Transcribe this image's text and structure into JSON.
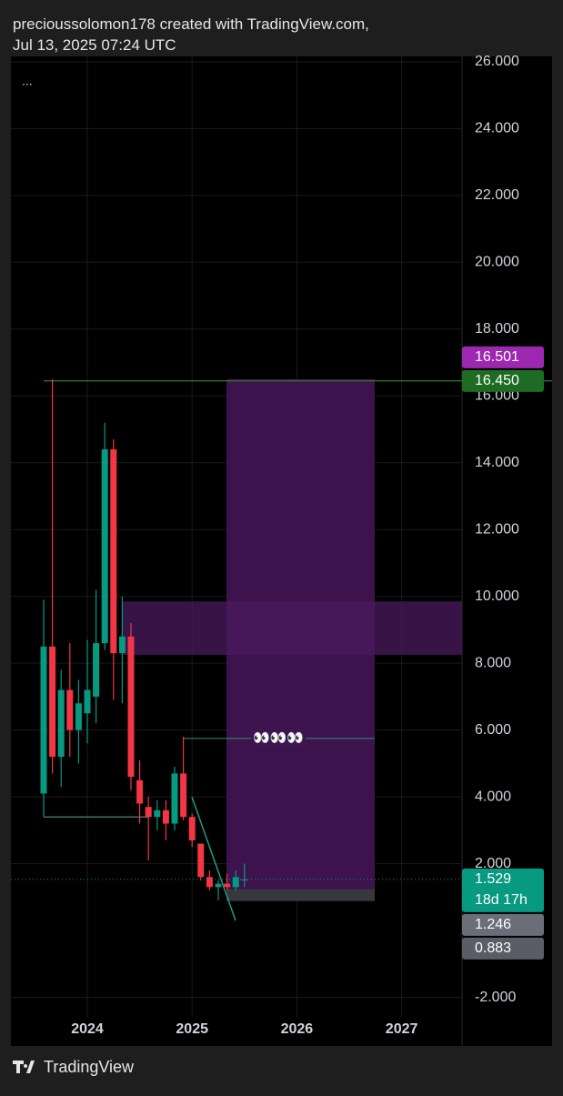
{
  "header": {
    "line1": "precioussolomon178 created with TradingView.com,",
    "line2": "Jul 13, 2025 07:24 UTC",
    "menu": "..."
  },
  "footer": {
    "brand": "TradingView"
  },
  "chart_data": {
    "type": "candlestick",
    "categories": [
      null,
      null,
      null,
      null,
      null,
      "2024",
      null,
      null,
      null,
      null,
      null,
      null,
      null,
      null,
      null,
      null,
      null,
      "2025",
      null,
      null,
      null,
      null,
      null,
      null,
      null,
      null,
      null,
      null,
      null,
      "2026",
      null,
      null,
      null,
      null,
      null,
      null,
      null,
      null,
      null,
      null,
      null,
      "2027",
      null,
      null,
      null,
      null,
      null
    ],
    "open": [
      4.1,
      8.5,
      5.2,
      7.2,
      6.0,
      6.5,
      7.0,
      8.6,
      14.4,
      8.3,
      8.8,
      4.5,
      3.7,
      3.4,
      3.6,
      3.2,
      4.7,
      3.4,
      2.6,
      1.6,
      1.3,
      1.4,
      1.3,
      1.5,
      null,
      null,
      null,
      null,
      null,
      null,
      null,
      null,
      null,
      null,
      null,
      null,
      null,
      null,
      null,
      null,
      null,
      null,
      null,
      null,
      null,
      null,
      null
    ],
    "high": [
      9.9,
      16.5,
      7.8,
      8.6,
      7.5,
      8.7,
      10.2,
      15.2,
      14.7,
      10.0,
      9.2,
      5.1,
      4.0,
      3.9,
      3.9,
      4.9,
      5.8,
      3.5,
      2.6,
      1.8,
      1.5,
      1.7,
      1.8,
      2.0,
      null,
      null,
      null,
      null,
      null,
      null,
      null,
      null,
      null,
      null,
      null,
      null,
      null,
      null,
      null,
      null,
      null,
      null,
      null,
      null,
      null,
      null,
      null
    ],
    "low": [
      3.4,
      4.7,
      4.3,
      5.2,
      5.0,
      5.6,
      6.2,
      8.4,
      6.9,
      6.8,
      4.2,
      3.2,
      2.1,
      3.0,
      2.7,
      3.0,
      3.3,
      2.5,
      1.5,
      1.2,
      0.9,
      1.2,
      1.2,
      1.3,
      null,
      null,
      null,
      null,
      null,
      null,
      null,
      null,
      null,
      null,
      null,
      null,
      null,
      null,
      null,
      null,
      null,
      null,
      null,
      null,
      null,
      null,
      null
    ],
    "close": [
      8.5,
      5.2,
      7.2,
      6.0,
      6.8,
      7.2,
      8.6,
      14.4,
      8.3,
      8.8,
      4.6,
      3.8,
      3.4,
      3.6,
      3.2,
      4.7,
      3.4,
      2.7,
      1.6,
      1.3,
      1.4,
      1.3,
      1.6,
      1.529,
      null,
      null,
      null,
      null,
      null,
      null,
      null,
      null,
      null,
      null,
      null,
      null,
      null,
      null,
      null,
      null,
      null,
      null,
      null,
      null,
      null,
      null,
      null
    ],
    "up_color": "#089981",
    "down_color": "#f23645",
    "ylim": [
      -3.4,
      26.16
    ],
    "yticks": [
      {
        "value": -2,
        "label": "-2.000"
      },
      {
        "value": 2,
        "label": "2.000"
      },
      {
        "value": 4,
        "label": "4.000"
      },
      {
        "value": 6,
        "label": "6.000"
      },
      {
        "value": 8,
        "label": "8.000"
      },
      {
        "value": 10,
        "label": "10.000"
      },
      {
        "value": 12,
        "label": "12.000"
      },
      {
        "value": 14,
        "label": "14.000"
      },
      {
        "value": 16,
        "label": "16.000"
      },
      {
        "value": 18,
        "label": "18.000"
      },
      {
        "value": 20,
        "label": "20.000"
      },
      {
        "value": 22,
        "label": "22.000"
      },
      {
        "value": 24,
        "label": "24.000"
      },
      {
        "value": 26,
        "label": "26.000"
      }
    ],
    "grid": true,
    "zones": [
      {
        "top": 16.501,
        "bottom": 1.246,
        "color": "#3f1450"
      },
      {
        "top": 1.246,
        "bottom": 0.883,
        "color": "#3a3b40"
      },
      {
        "top": 9.85,
        "bottom": 8.25,
        "color": "#4a1a5e"
      }
    ],
    "levels": [
      {
        "value": 16.45,
        "color": "#2e7d32"
      },
      {
        "value": 3.4,
        "color": "#5f8f86"
      }
    ],
    "trendline": {
      "values": [
        4.0,
        0.3
      ],
      "color": "#1e9c88"
    },
    "annotation": {
      "value": 5.75,
      "text": "👀👀👀",
      "color": "#2f8f80"
    },
    "current_price_line": {
      "value": 1.529,
      "color": "#089981"
    },
    "price_labels": [
      {
        "value": 16.501,
        "label": "16.501",
        "color": "#9c27b0"
      },
      {
        "value": 16.45,
        "label": "16.450",
        "color": "#1e6b23"
      },
      {
        "value": 1.529,
        "label": "1.529",
        "sub": "18d 17h",
        "color": "#089981"
      },
      {
        "value": 1.246,
        "label": "1.246",
        "color": "#6b6e78"
      },
      {
        "value": 0.883,
        "label": "0.883",
        "color": "#5a5d66"
      }
    ]
  }
}
